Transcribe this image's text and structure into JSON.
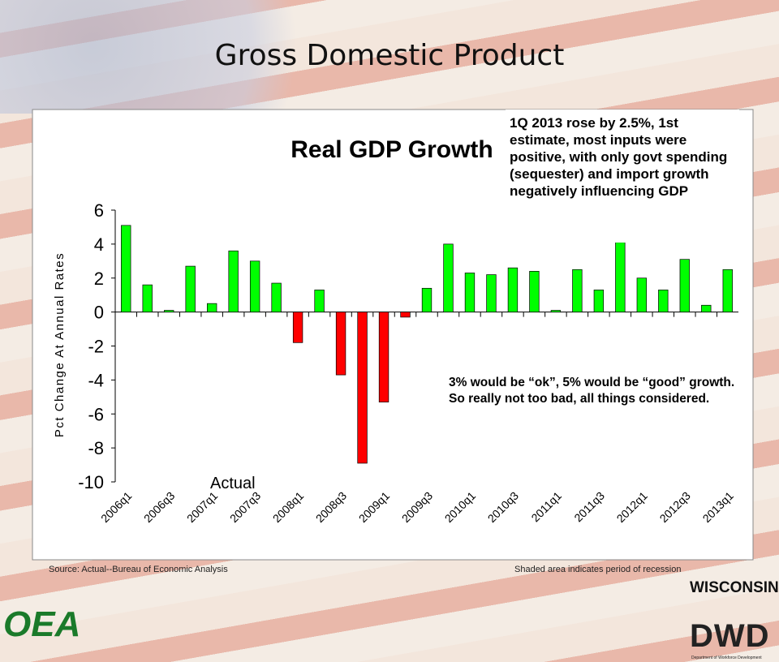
{
  "slide": {
    "title": "Gross Domestic Product",
    "source": "Source: Actual--Bureau  of Economic Analysis",
    "note": "Shaded area indicates period of recession",
    "logo_left": "OEA",
    "logo_right_top": "WISCONSIN",
    "logo_right": "DWD",
    "logo_right_sub": "Department of Workforce Development"
  },
  "chart_data": {
    "type": "bar",
    "title": "Real GDP Growth",
    "y_label": "Pct Change At Annual Rates",
    "categories": [
      "2006q1",
      null,
      "2006q3",
      null,
      "2007q1",
      null,
      "2007q3",
      null,
      "2008q1",
      null,
      "2008q3",
      null,
      "2009q1",
      null,
      "2009q3",
      null,
      "2010q1",
      null,
      "2010q3",
      null,
      "2011q1",
      null,
      "2011q3",
      null,
      "2012q1",
      null,
      "2012q3",
      null,
      "2013q1"
    ],
    "values": [
      5.1,
      1.6,
      0.1,
      2.7,
      0.5,
      3.6,
      3.0,
      1.7,
      -1.8,
      1.3,
      -3.7,
      -8.9,
      -5.3,
      -0.3,
      1.4,
      4.0,
      2.3,
      2.2,
      2.6,
      2.4,
      0.1,
      2.5,
      1.3,
      4.1,
      2.0,
      1.3,
      3.1,
      0.4,
      2.5
    ],
    "color": "#00ff00",
    "negative_color": "#ff0000",
    "ylim": [
      -10,
      6
    ],
    "yticks": [
      -10,
      -8,
      -6,
      -4,
      -2,
      0,
      2,
      4,
      6
    ],
    "series_label": "Actual",
    "annotations": [
      "1Q 2013 rose by 2.5%, 1st estimate, most inputs were positive, with only govt spending (sequester) and import growth negatively influencing GDP",
      "3% would be “ok”, 5% would be “good” growth.  So really not too bad, all things considered."
    ]
  }
}
